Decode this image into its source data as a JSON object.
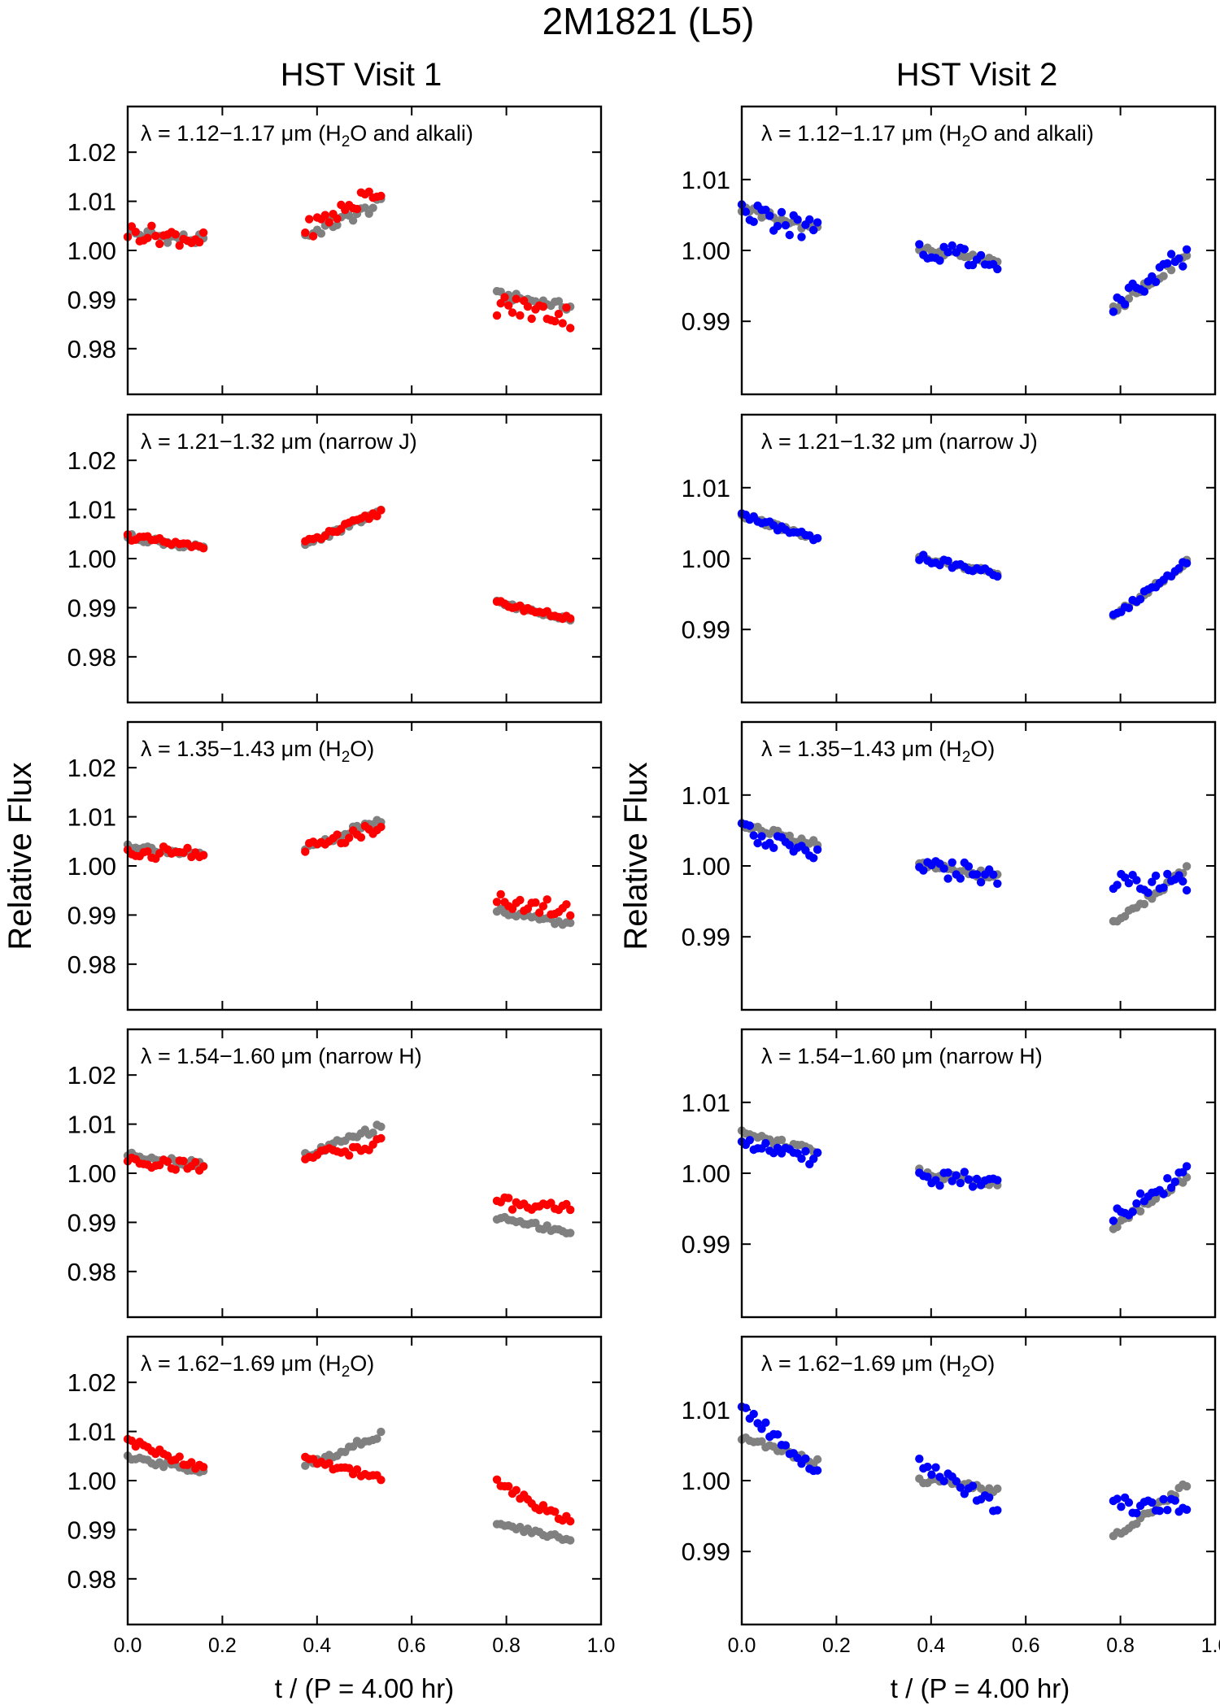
{
  "figure": {
    "title": "2M1821 (L5)",
    "column_titles": [
      "HST Visit 1",
      "HST Visit 2"
    ],
    "ylabel": "Relative Flux",
    "xlabel": "t / (P = 4.00 hr)",
    "xticks": [
      "0.0",
      "0.2",
      "0.4",
      "0.6",
      "0.8",
      "1.0"
    ],
    "colors": {
      "visit1": "#ff0000",
      "visit2": "#0000ff",
      "reference": "#808080"
    }
  },
  "bands": [
    {
      "label_prefix": "λ = 1.12−1.17 μm (H",
      "label_sub": "2",
      "label_suffix": "O and alkali)"
    },
    {
      "label_prefix": "λ = 1.21−1.32 μm (narrow J)",
      "label_sub": "",
      "label_suffix": ""
    },
    {
      "label_prefix": "λ = 1.35−1.43 μm (H",
      "label_sub": "2",
      "label_suffix": "O)"
    },
    {
      "label_prefix": "λ = 1.54−1.60 μm (narrow H)",
      "label_sub": "",
      "label_suffix": ""
    },
    {
      "label_prefix": "λ = 1.62−1.69 μm (H",
      "label_sub": "2",
      "label_suffix": "O)"
    }
  ],
  "chart_data": [
    {
      "type": "scatter",
      "panel": "visit1-band1",
      "band": "λ = 1.12−1.17 μm (H2O and alkali)",
      "xlim": [
        0,
        1
      ],
      "ylim": [
        0.9707,
        1.0293
      ],
      "yticks": [
        1.02,
        1.01,
        1.0,
        0.99,
        0.98
      ],
      "color": "#ff0000",
      "series": [
        {
          "name": "reference",
          "segments": [
            {
              "x0": 0.0,
              "x1": 0.16,
              "y0": 1.0035,
              "y1": 1.002,
              "amp": 0.0012
            },
            {
              "x0": 0.375,
              "x1": 0.535,
              "y0": 1.003,
              "y1": 1.0095,
              "amp": 0.0012
            },
            {
              "x0": 0.78,
              "x1": 0.935,
              "y0": 0.991,
              "y1": 0.9885,
              "amp": 0.0008
            }
          ]
        },
        {
          "name": "band",
          "segments": [
            {
              "x0": 0.0,
              "x1": 0.16,
              "y0": 1.0038,
              "y1": 1.0022,
              "amp": 0.0018
            },
            {
              "x0": 0.375,
              "x1": 0.535,
              "y0": 1.004,
              "y1": 1.0125,
              "amp": 0.002
            },
            {
              "x0": 0.78,
              "x1": 0.935,
              "y0": 0.989,
              "y1": 0.9865,
              "amp": 0.0024
            }
          ]
        }
      ]
    },
    {
      "type": "scatter",
      "panel": "visit1-band2",
      "band": "λ = 1.21−1.32 μm (narrow J)",
      "xlim": [
        0,
        1
      ],
      "ylim": [
        0.9707,
        1.0293
      ],
      "yticks": [
        1.02,
        1.01,
        1.0,
        0.99,
        0.98
      ],
      "color": "#ff0000",
      "series": [
        {
          "name": "reference",
          "segments": [
            {
              "x0": 0.0,
              "x1": 0.16,
              "y0": 1.0045,
              "y1": 1.002,
              "amp": 0.0006
            },
            {
              "x0": 0.375,
              "x1": 0.535,
              "y0": 1.003,
              "y1": 1.0095,
              "amp": 0.0006
            },
            {
              "x0": 0.78,
              "x1": 0.935,
              "y0": 0.991,
              "y1": 0.9878,
              "amp": 0.0005
            }
          ]
        },
        {
          "name": "band",
          "segments": [
            {
              "x0": 0.0,
              "x1": 0.16,
              "y0": 1.0045,
              "y1": 1.002,
              "amp": 0.0007
            },
            {
              "x0": 0.375,
              "x1": 0.535,
              "y0": 1.003,
              "y1": 1.0095,
              "amp": 0.0007
            },
            {
              "x0": 0.78,
              "x1": 0.935,
              "y0": 0.991,
              "y1": 0.9878,
              "amp": 0.0005
            }
          ]
        }
      ]
    },
    {
      "type": "scatter",
      "panel": "visit1-band3",
      "band": "λ = 1.35−1.43 μm (H2O)",
      "xlim": [
        0,
        1
      ],
      "ylim": [
        0.9707,
        1.0293
      ],
      "yticks": [
        1.02,
        1.01,
        1.0,
        0.99,
        0.98
      ],
      "color": "#ff0000",
      "series": [
        {
          "name": "reference",
          "segments": [
            {
              "x0": 0.0,
              "x1": 0.16,
              "y0": 1.0042,
              "y1": 1.002,
              "amp": 0.0006
            },
            {
              "x0": 0.375,
              "x1": 0.535,
              "y0": 1.0035,
              "y1": 1.0095,
              "amp": 0.0007
            },
            {
              "x0": 0.78,
              "x1": 0.935,
              "y0": 0.991,
              "y1": 0.988,
              "amp": 0.0006
            }
          ]
        },
        {
          "name": "band",
          "segments": [
            {
              "x0": 0.0,
              "x1": 0.16,
              "y0": 1.0025,
              "y1": 1.003,
              "amp": 0.0014
            },
            {
              "x0": 0.375,
              "x1": 0.535,
              "y0": 1.0035,
              "y1": 1.008,
              "amp": 0.0012
            },
            {
              "x0": 0.78,
              "x1": 0.935,
              "y0": 0.993,
              "y1": 0.991,
              "amp": 0.0016
            }
          ]
        }
      ]
    },
    {
      "type": "scatter",
      "panel": "visit1-band4",
      "band": "λ = 1.54−1.60 μm (narrow H)",
      "xlim": [
        0,
        1
      ],
      "ylim": [
        0.9707,
        1.0293
      ],
      "yticks": [
        1.02,
        1.01,
        1.0,
        0.99,
        0.98
      ],
      "color": "#ff0000",
      "series": [
        {
          "name": "reference",
          "segments": [
            {
              "x0": 0.0,
              "x1": 0.16,
              "y0": 1.0038,
              "y1": 1.0018,
              "amp": 0.0006
            },
            {
              "x0": 0.375,
              "x1": 0.535,
              "y0": 1.0035,
              "y1": 1.0095,
              "amp": 0.0007
            },
            {
              "x0": 0.78,
              "x1": 0.935,
              "y0": 0.991,
              "y1": 0.988,
              "amp": 0.0006
            }
          ]
        },
        {
          "name": "band",
          "segments": [
            {
              "x0": 0.0,
              "x1": 0.16,
              "y0": 1.003,
              "y1": 1.001,
              "amp": 0.0014
            },
            {
              "x0": 0.375,
              "x1": 0.535,
              "y0": 1.003,
              "y1": 1.006,
              "amp": 0.0012
            },
            {
              "x0": 0.78,
              "x1": 0.935,
              "y0": 0.994,
              "y1": 0.993,
              "amp": 0.0012
            }
          ]
        }
      ]
    },
    {
      "type": "scatter",
      "panel": "visit1-band5",
      "band": "λ = 1.62−1.69 μm (H2O)",
      "xlim": [
        0,
        1
      ],
      "ylim": [
        0.9707,
        1.0293
      ],
      "yticks": [
        1.02,
        1.01,
        1.0,
        0.99,
        0.98
      ],
      "color": "#ff0000",
      "series": [
        {
          "name": "reference",
          "segments": [
            {
              "x0": 0.0,
              "x1": 0.16,
              "y0": 1.0045,
              "y1": 1.002,
              "amp": 0.0006
            },
            {
              "x0": 0.375,
              "x1": 0.535,
              "y0": 1.003,
              "y1": 1.0095,
              "amp": 0.0007
            },
            {
              "x0": 0.78,
              "x1": 0.935,
              "y0": 0.991,
              "y1": 0.988,
              "amp": 0.0006
            }
          ]
        },
        {
          "name": "band",
          "segments": [
            {
              "x0": 0.0,
              "x1": 0.16,
              "y0": 1.008,
              "y1": 1.0025,
              "amp": 0.0008
            },
            {
              "x0": 0.375,
              "x1": 0.535,
              "y0": 1.0045,
              "y1": 1.0005,
              "amp": 0.0008
            },
            {
              "x0": 0.78,
              "x1": 0.935,
              "y0": 0.9995,
              "y1": 0.9915,
              "amp": 0.0009
            }
          ]
        }
      ]
    },
    {
      "type": "scatter",
      "panel": "visit2-band1",
      "band": "λ = 1.12−1.17 μm (H2O and alkali)",
      "xlim": [
        0,
        1
      ],
      "ylim": [
        0.9797,
        1.0203
      ],
      "yticks": [
        1.01,
        1.0,
        0.99
      ],
      "color": "#0000ff",
      "series": [
        {
          "name": "reference",
          "segments": [
            {
              "x0": 0.0,
              "x1": 0.16,
              "y0": 1.0058,
              "y1": 1.003,
              "amp": 0.0006
            },
            {
              "x0": 0.375,
              "x1": 0.54,
              "y0": 1.0002,
              "y1": 0.9985,
              "amp": 0.0004
            },
            {
              "x0": 0.785,
              "x1": 0.94,
              "y0": 0.9915,
              "y1": 0.9995,
              "amp": 0.0006
            }
          ]
        },
        {
          "name": "band",
          "segments": [
            {
              "x0": 0.0,
              "x1": 0.16,
              "y0": 1.0055,
              "y1": 1.0025,
              "amp": 0.0016
            },
            {
              "x0": 0.375,
              "x1": 0.54,
              "y0": 1.0002,
              "y1": 0.9985,
              "amp": 0.0013
            },
            {
              "x0": 0.785,
              "x1": 0.94,
              "y0": 0.992,
              "y1": 0.9995,
              "amp": 0.0018
            }
          ]
        }
      ]
    },
    {
      "type": "scatter",
      "panel": "visit2-band2",
      "band": "λ = 1.21−1.32 μm (narrow J)",
      "xlim": [
        0,
        1
      ],
      "ylim": [
        0.9797,
        1.0203
      ],
      "yticks": [
        1.01,
        1.0,
        0.99
      ],
      "color": "#0000ff",
      "series": [
        {
          "name": "reference",
          "segments": [
            {
              "x0": 0.0,
              "x1": 0.16,
              "y0": 1.0062,
              "y1": 1.0025,
              "amp": 0.0004
            },
            {
              "x0": 0.375,
              "x1": 0.54,
              "y0": 1.0002,
              "y1": 0.9978,
              "amp": 0.0004
            },
            {
              "x0": 0.785,
              "x1": 0.94,
              "y0": 0.9918,
              "y1": 0.9995,
              "amp": 0.0004
            }
          ]
        },
        {
          "name": "band",
          "segments": [
            {
              "x0": 0.0,
              "x1": 0.16,
              "y0": 1.0062,
              "y1": 1.0025,
              "amp": 0.0005
            },
            {
              "x0": 0.375,
              "x1": 0.54,
              "y0": 1.0002,
              "y1": 0.9978,
              "amp": 0.0005
            },
            {
              "x0": 0.785,
              "x1": 0.94,
              "y0": 0.9918,
              "y1": 0.9995,
              "amp": 0.0005
            }
          ]
        }
      ]
    },
    {
      "type": "scatter",
      "panel": "visit2-band3",
      "band": "λ = 1.35−1.43 μm (H2O)",
      "xlim": [
        0,
        1
      ],
      "ylim": [
        0.9797,
        1.0203
      ],
      "yticks": [
        1.01,
        1.0,
        0.99
      ],
      "color": "#0000ff",
      "series": [
        {
          "name": "reference",
          "segments": [
            {
              "x0": 0.0,
              "x1": 0.16,
              "y0": 1.0058,
              "y1": 1.003,
              "amp": 0.0005
            },
            {
              "x0": 0.375,
              "x1": 0.54,
              "y0": 1.0002,
              "y1": 0.9985,
              "amp": 0.0005
            },
            {
              "x0": 0.785,
              "x1": 0.94,
              "y0": 0.9918,
              "y1": 0.9995,
              "amp": 0.0005
            }
          ]
        },
        {
          "name": "band",
          "segments": [
            {
              "x0": 0.0,
              "x1": 0.16,
              "y0": 1.005,
              "y1": 1.002,
              "amp": 0.0013
            },
            {
              "x0": 0.375,
              "x1": 0.54,
              "y0": 1.0,
              "y1": 0.9985,
              "amp": 0.0016
            },
            {
              "x0": 0.785,
              "x1": 0.94,
              "y0": 0.9975,
              "y1": 0.997,
              "amp": 0.0018
            }
          ]
        }
      ]
    },
    {
      "type": "scatter",
      "panel": "visit2-band4",
      "band": "λ = 1.54−1.60 μm (narrow H)",
      "xlim": [
        0,
        1
      ],
      "ylim": [
        0.9797,
        1.0203
      ],
      "yticks": [
        1.01,
        1.0,
        0.99
      ],
      "color": "#0000ff",
      "series": [
        {
          "name": "reference",
          "segments": [
            {
              "x0": 0.0,
              "x1": 0.16,
              "y0": 1.0058,
              "y1": 1.003,
              "amp": 0.0005
            },
            {
              "x0": 0.375,
              "x1": 0.54,
              "y0": 1.0002,
              "y1": 0.9985,
              "amp": 0.0005
            },
            {
              "x0": 0.785,
              "x1": 0.94,
              "y0": 0.9925,
              "y1": 0.9995,
              "amp": 0.0005
            }
          ]
        },
        {
          "name": "band",
          "segments": [
            {
              "x0": 0.0,
              "x1": 0.16,
              "y0": 1.005,
              "y1": 1.002,
              "amp": 0.0012
            },
            {
              "x0": 0.375,
              "x1": 0.54,
              "y0": 0.9995,
              "y1": 0.999,
              "amp": 0.0012
            },
            {
              "x0": 0.785,
              "x1": 0.94,
              "y0": 0.994,
              "y1": 1.0,
              "amp": 0.0012
            }
          ]
        }
      ]
    },
    {
      "type": "scatter",
      "panel": "visit2-band5",
      "band": "λ = 1.62−1.69 μm (H2O)",
      "xlim": [
        0,
        1
      ],
      "ylim": [
        0.9797,
        1.0203
      ],
      "yticks": [
        1.01,
        1.0,
        0.99
      ],
      "color": "#0000ff",
      "series": [
        {
          "name": "reference",
          "segments": [
            {
              "x0": 0.0,
              "x1": 0.16,
              "y0": 1.0062,
              "y1": 1.0025,
              "amp": 0.0005
            },
            {
              "x0": 0.375,
              "x1": 0.54,
              "y0": 1.0002,
              "y1": 0.9985,
              "amp": 0.0005
            },
            {
              "x0": 0.785,
              "x1": 0.94,
              "y0": 0.992,
              "y1": 0.9995,
              "amp": 0.0005
            }
          ]
        },
        {
          "name": "band",
          "segments": [
            {
              "x0": 0.0,
              "x1": 0.16,
              "y0": 1.0105,
              "y1": 1.001,
              "amp": 0.0009
            },
            {
              "x0": 0.375,
              "x1": 0.54,
              "y0": 1.002,
              "y1": 0.9965,
              "amp": 0.0011
            },
            {
              "x0": 0.785,
              "x1": 0.94,
              "y0": 0.9965,
              "y1": 0.9965,
              "amp": 0.0012
            }
          ]
        }
      ]
    }
  ]
}
